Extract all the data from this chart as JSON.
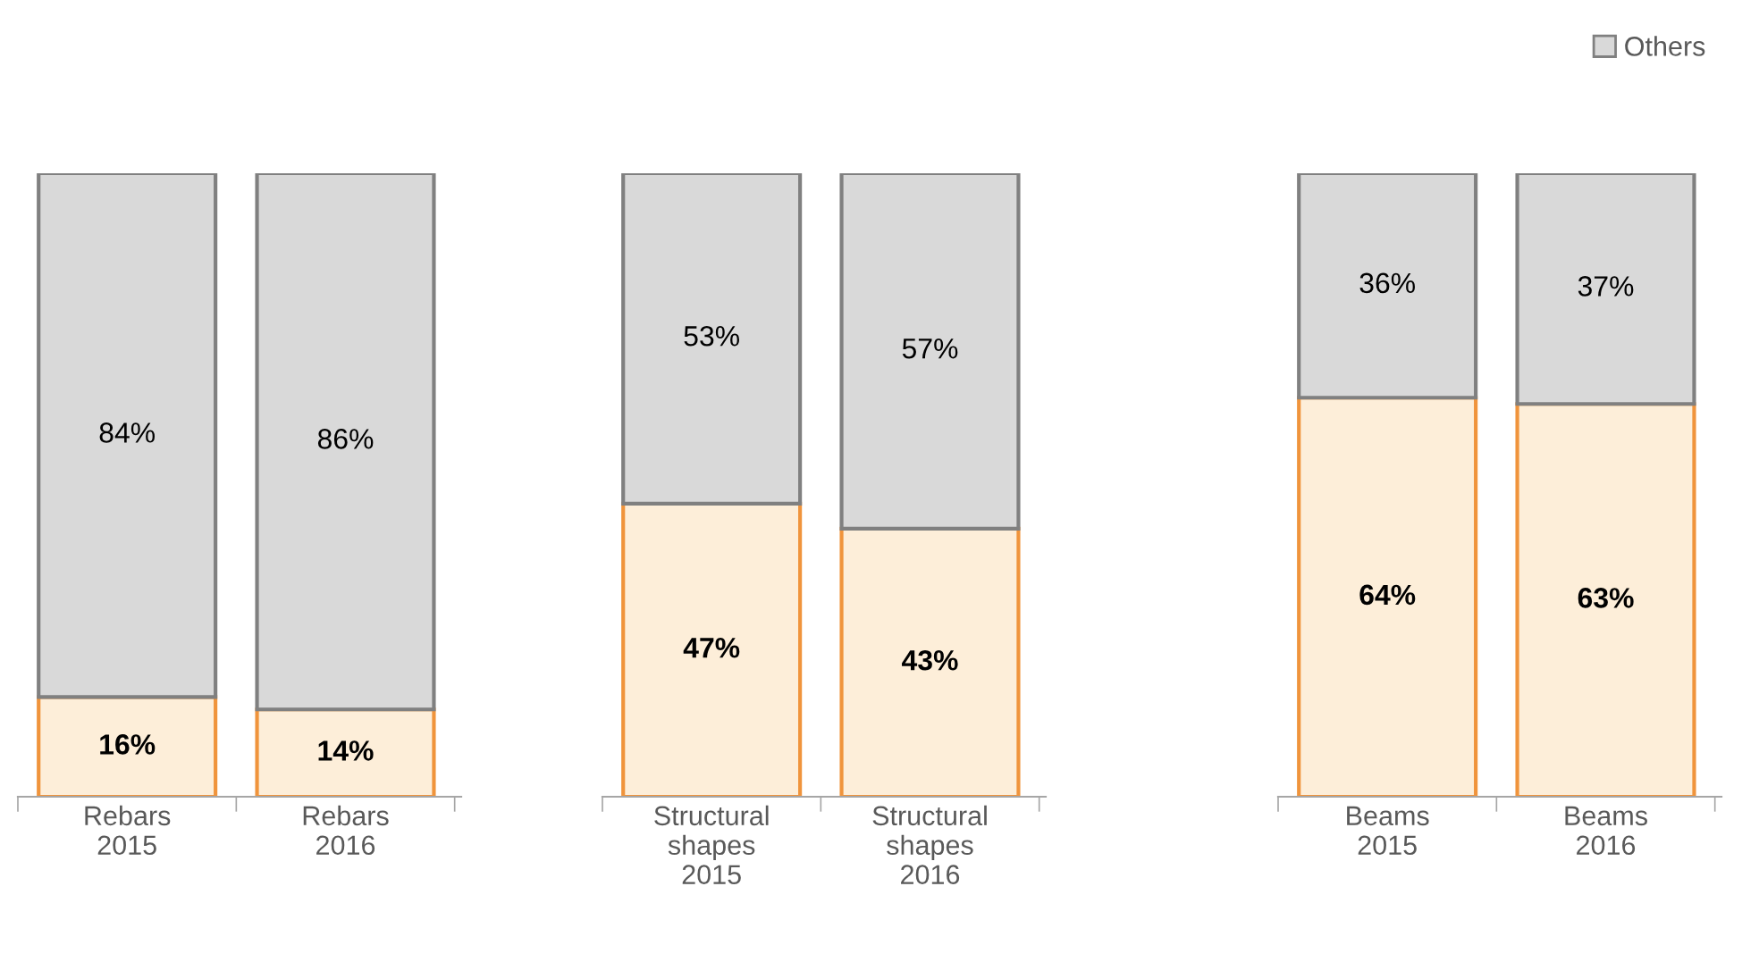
{
  "chart_data": [
    {
      "type": "bar",
      "stacked": true,
      "categories": [
        "Rebars\n2015",
        "Rebars\n2016"
      ],
      "tick_labels": "x",
      "series": [
        {
          "color": "#fdeed9",
          "values": [
            16,
            14
          ],
          "value_labels": [
            "16%",
            "14%"
          ]
        },
        {
          "color": "#d9d9d9",
          "values": [
            84,
            86
          ],
          "value_labels": [
            "84%",
            "86%"
          ]
        }
      ]
    },
    {
      "type": "bar",
      "stacked": true,
      "categories": [
        "Structural\nshapes\n2015",
        "Structural\nshapes\n2016"
      ],
      "tick_labels": "x",
      "series": [
        {
          "color": "#fdeed9",
          "values": [
            47,
            43
          ],
          "value_labels": [
            "47%",
            "43%"
          ]
        },
        {
          "color": "#d9d9d9",
          "values": [
            53,
            57
          ],
          "value_labels": [
            "53%",
            "57%"
          ]
        }
      ]
    },
    {
      "type": "bar",
      "stacked": true,
      "categories": [
        "Beams\n2015",
        "Beams\n2016"
      ],
      "tick_labels": "x",
      "legend": "top right",
      "series": [
        {
          "color": "#fdeed9",
          "values": [
            64,
            63
          ],
          "value_labels": [
            "64%",
            "63%"
          ]
        },
        {
          "name": "Others",
          "color": "#d9d9d9",
          "values": [
            36,
            37
          ],
          "value_labels": [
            "36%",
            "37%"
          ]
        }
      ]
    }
  ]
}
